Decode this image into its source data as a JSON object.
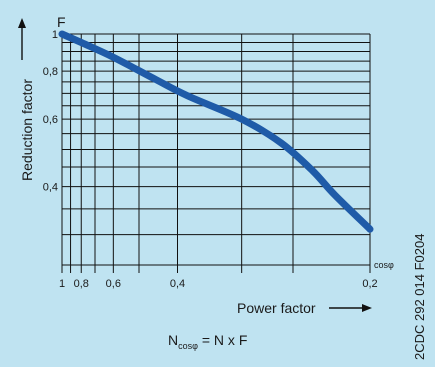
{
  "figure": {
    "background": "#bfe3f1",
    "curve_color": "#1f5ba8",
    "line_color": "#111111",
    "side_code": "2CDC 292 014 F0204"
  },
  "chart_data": {
    "type": "line",
    "title": "",
    "xlabel": "Power factor",
    "ylabel": "Reduction factor",
    "x_axis_unit_label": "cosφ",
    "y_axis_letter": "F",
    "x_scale": "reciprocal",
    "y_scale": "log",
    "xlim": [
      1,
      0.2
    ],
    "ylim": [
      0.25,
      1
    ],
    "grid": true,
    "x_ticks": [
      {
        "value": 1,
        "label": "1"
      },
      {
        "value": 0.8,
        "label": "0,8"
      },
      {
        "value": 0.6,
        "label": "0,6"
      },
      {
        "value": 0.4,
        "label": "0,4"
      },
      {
        "value": 0.2,
        "label": "0,2"
      }
    ],
    "x_grid": [
      1,
      0.9,
      0.8,
      0.7,
      0.6,
      0.5,
      0.4,
      0.3,
      0.25,
      0.2
    ],
    "y_ticks": [
      {
        "value": 1,
        "label": "1"
      },
      {
        "value": 0.8,
        "label": "0,8"
      },
      {
        "value": 0.6,
        "label": "0,6"
      },
      {
        "value": 0.4,
        "label": "0,4"
      }
    ],
    "y_grid": [
      1,
      0.95,
      0.9,
      0.85,
      0.8,
      0.75,
      0.7,
      0.65,
      0.6,
      0.55,
      0.5,
      0.45,
      0.4,
      0.35,
      0.3,
      0.25
    ],
    "series": [
      {
        "x": [
          1,
          0.8,
          0.6,
          0.45,
          0.38,
          0.3,
          0.26,
          0.235,
          0.22,
          0.2
        ],
        "y": [
          1,
          0.95,
          0.87,
          0.76,
          0.69,
          0.6,
          0.52,
          0.44,
          0.38,
          0.31
        ]
      }
    ],
    "formula": {
      "lhs": "N",
      "subscript": "cosφ",
      "rhs": " = N x F"
    }
  }
}
